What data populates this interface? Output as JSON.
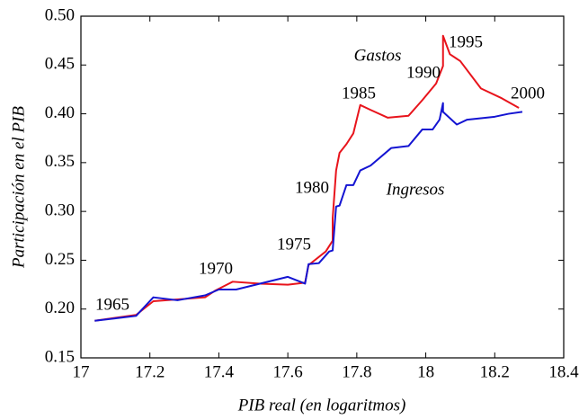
{
  "chart_data": {
    "type": "line",
    "xlabel": "PIB real (en logaritmos)",
    "ylabel": "Participación en el PIB",
    "xlim": [
      17,
      18.4
    ],
    "ylim": [
      0.15,
      0.5
    ],
    "xticks": [
      17,
      17.2,
      17.4,
      17.6,
      17.8,
      18,
      18.2,
      18.4
    ],
    "yticks": [
      0.15,
      {
        "value": 0.2,
        "label": "0.20"
      },
      0.25,
      {
        "value": 0.3,
        "label": "0.30"
      },
      0.35,
      {
        "value": 0.4,
        "label": "0.40"
      },
      0.45,
      {
        "value": 0.5,
        "label": "0.50"
      }
    ],
    "grid": false,
    "annotations": [
      "1965",
      "1970",
      "1975",
      "1980",
      "1985",
      "1990",
      "1995",
      "2000"
    ],
    "series": [
      {
        "name": "Gastos",
        "color": "#e8141c",
        "x": [
          17.04,
          17.16,
          17.21,
          17.36,
          17.39,
          17.44,
          17.52,
          17.6,
          17.65,
          17.66,
          17.71,
          17.73,
          17.73,
          17.74,
          17.75,
          17.77,
          17.79,
          17.81,
          17.84,
          17.89,
          17.95,
          17.99,
          18.03,
          18.05,
          18.05,
          18.07,
          18.1,
          18.16,
          18.22,
          18.27
        ],
        "values": [
          0.188,
          0.194,
          0.208,
          0.212,
          0.219,
          0.228,
          0.226,
          0.225,
          0.227,
          0.245,
          0.259,
          0.27,
          0.293,
          0.342,
          0.36,
          0.369,
          0.38,
          0.409,
          0.404,
          0.396,
          0.398,
          0.414,
          0.431,
          0.449,
          0.48,
          0.461,
          0.454,
          0.426,
          0.416,
          0.406
        ]
      },
      {
        "name": "Ingresos",
        "color": "#1414d2",
        "x": [
          17.04,
          17.16,
          17.21,
          17.28,
          17.36,
          17.4,
          17.45,
          17.6,
          17.65,
          17.66,
          17.69,
          17.72,
          17.73,
          17.74,
          17.75,
          17.77,
          17.79,
          17.81,
          17.84,
          17.9,
          17.95,
          17.99,
          18.02,
          18.04,
          18.05,
          18.05,
          18.09,
          18.12,
          18.2,
          18.24,
          18.28
        ],
        "values": [
          0.188,
          0.193,
          0.212,
          0.209,
          0.214,
          0.22,
          0.22,
          0.233,
          0.226,
          0.246,
          0.247,
          0.259,
          0.26,
          0.305,
          0.306,
          0.327,
          0.327,
          0.342,
          0.347,
          0.365,
          0.367,
          0.384,
          0.384,
          0.394,
          0.411,
          0.402,
          0.389,
          0.394,
          0.397,
          0.4,
          0.402
        ]
      }
    ]
  }
}
